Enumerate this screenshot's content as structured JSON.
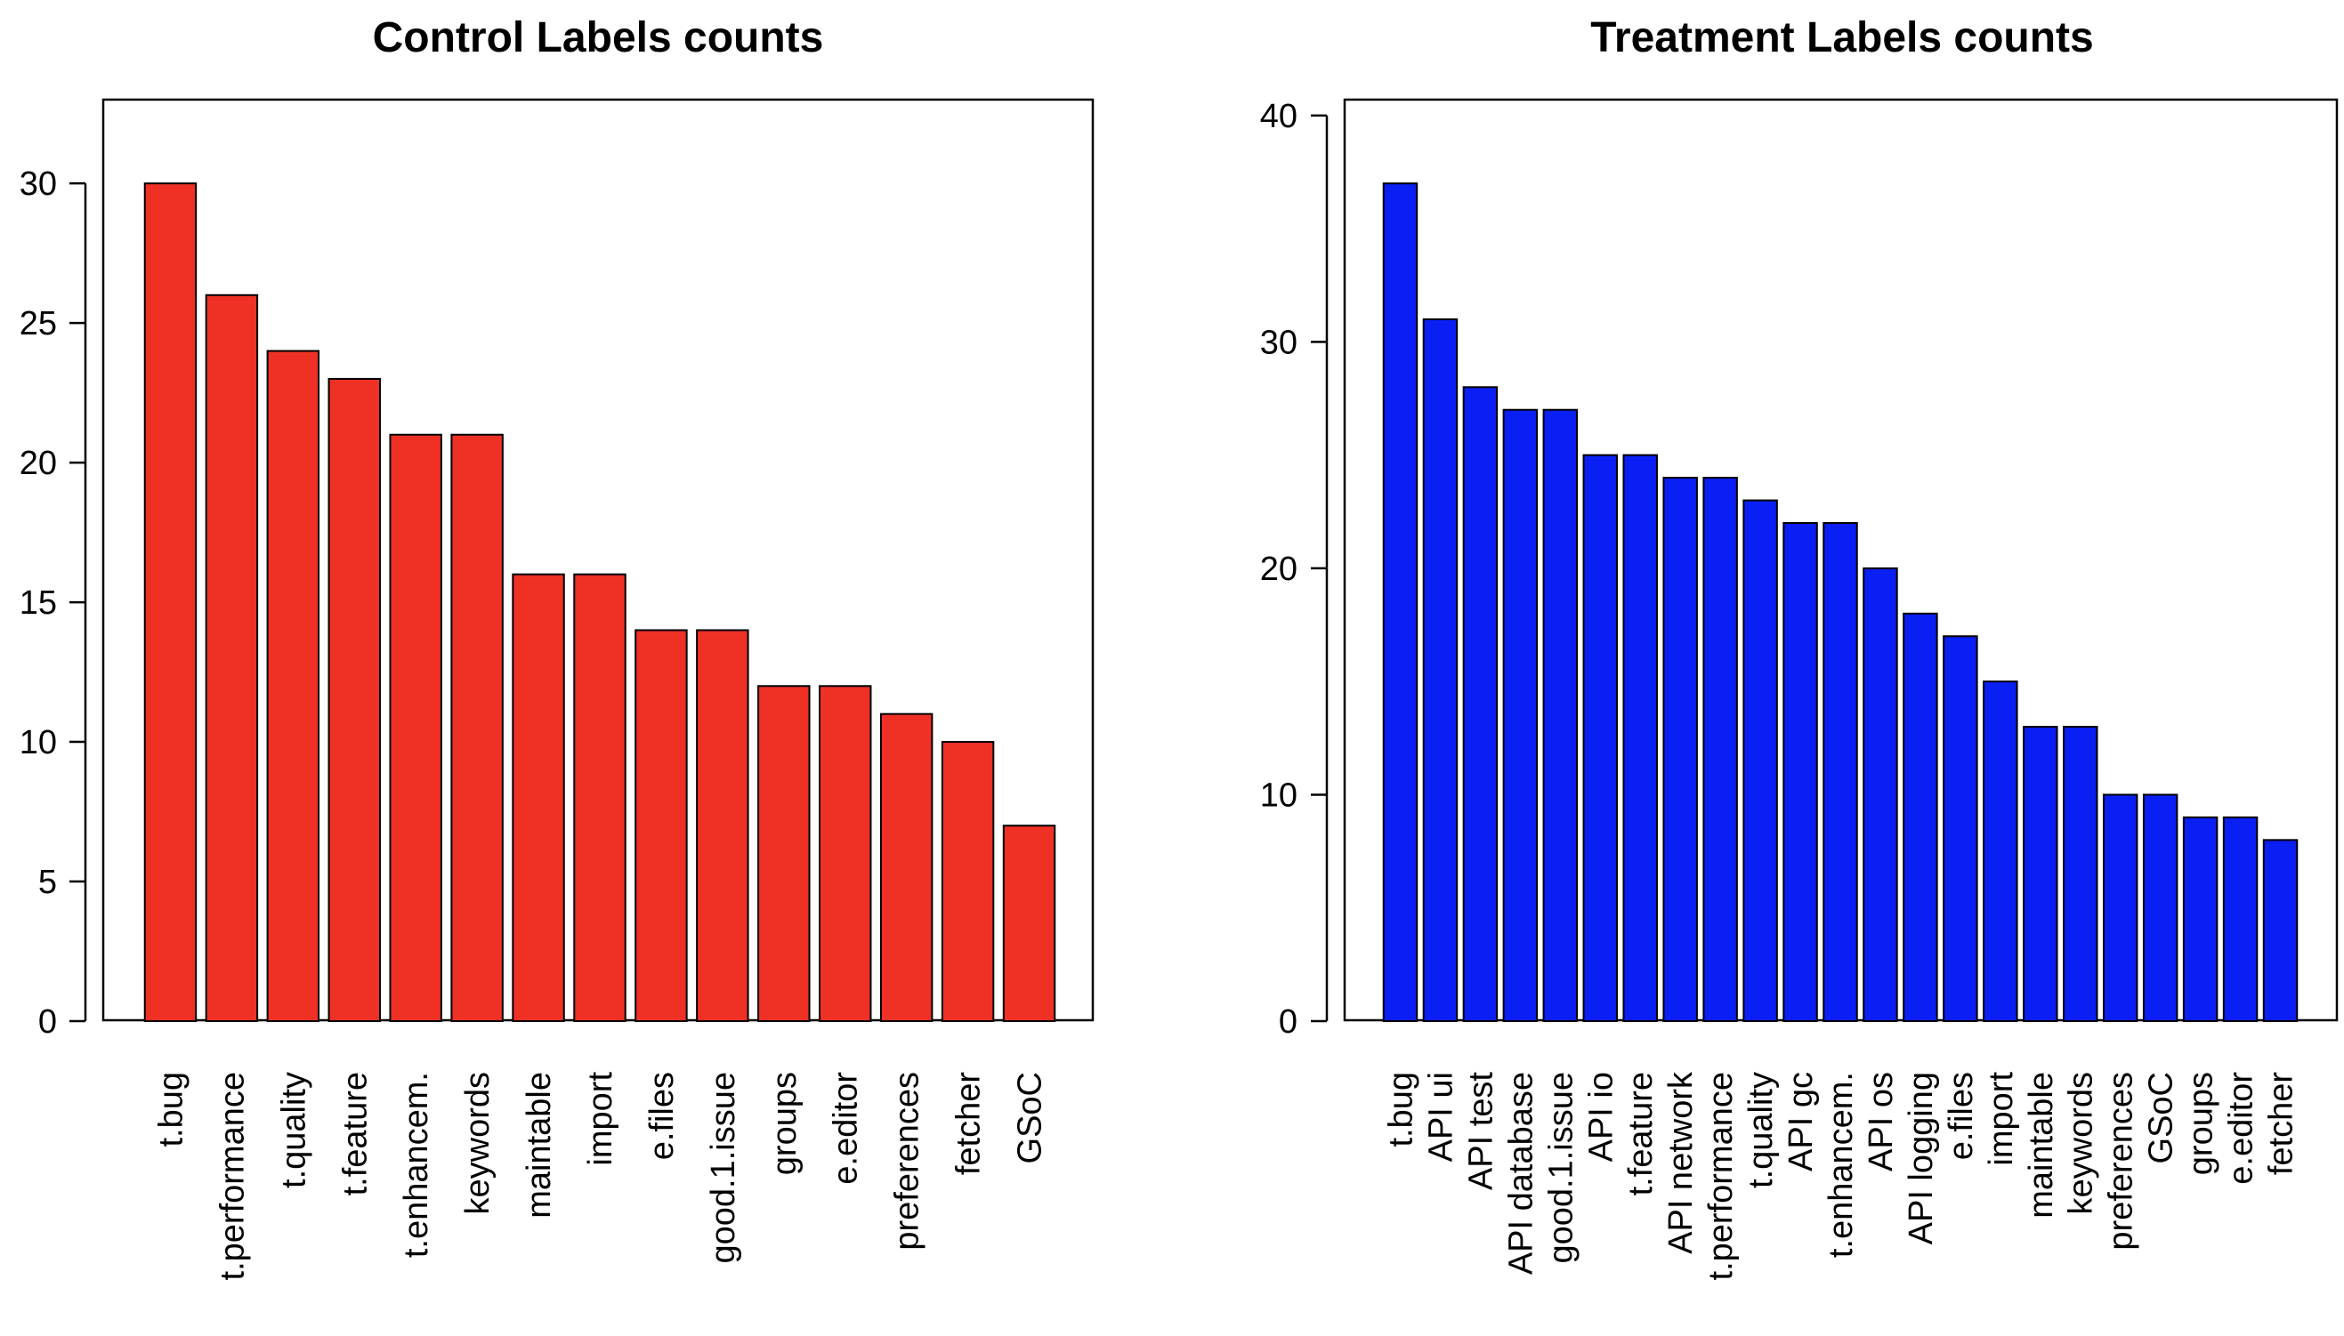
{
  "chart_data": [
    {
      "type": "bar",
      "title": "Control Labels counts",
      "xlabel": "",
      "ylabel": "",
      "ylim": [
        0,
        33
      ],
      "yticks": [
        0,
        5,
        10,
        15,
        20,
        25,
        30
      ],
      "bar_color": "#EE3124",
      "categories": [
        "t.bug",
        "t.performance",
        "t.quality",
        "t.feature",
        "t.enhancem.",
        "keywords",
        "maintable",
        "import",
        "e.files",
        "good.1.issue",
        "groups",
        "e.editor",
        "preferences",
        "fetcher",
        "GSoC"
      ],
      "values": [
        30,
        26,
        24,
        23,
        21,
        21,
        16,
        16,
        14,
        14,
        12,
        12,
        11,
        10,
        7
      ]
    },
    {
      "type": "bar",
      "title": "Treatment Labels counts",
      "xlabel": "",
      "ylabel": "",
      "ylim": [
        0,
        40.7
      ],
      "yticks": [
        0,
        10,
        20,
        30,
        40
      ],
      "bar_color": "#0A1FF4",
      "categories": [
        "t.bug",
        "API ui",
        "API test",
        "API database",
        "good.1.issue",
        "API io",
        "t.feature",
        "API network",
        "t.performance",
        "t.quality",
        "API gc",
        "t.enhancem.",
        "API os",
        "API logging",
        "e.files",
        "import",
        "maintable",
        "keywords",
        "preferences",
        "GSoC",
        "groups",
        "e.editor",
        "fetcher"
      ],
      "values": [
        37,
        31,
        28,
        27,
        27,
        25,
        25,
        24,
        24,
        23,
        22,
        22,
        20,
        18,
        17,
        15,
        13,
        13,
        10,
        10,
        9,
        9,
        8
      ]
    }
  ]
}
